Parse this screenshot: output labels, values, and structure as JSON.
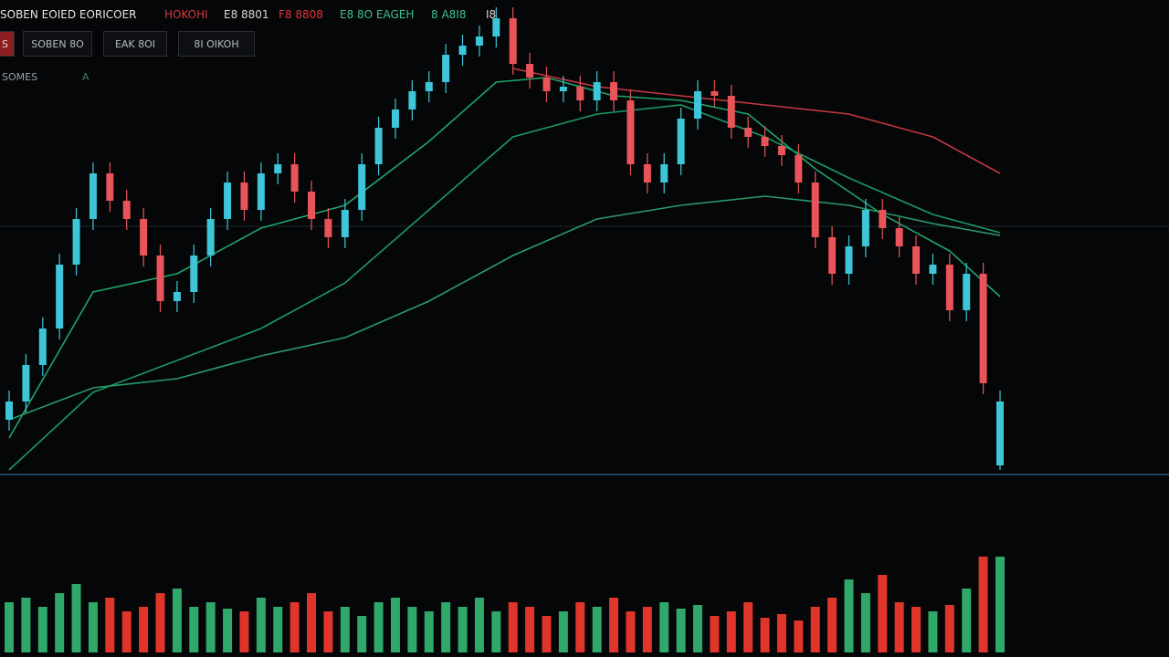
{
  "header": {
    "items": [
      {
        "text": "SOBEN EOIED EORICOER",
        "color": "#e6e6e6"
      },
      {
        "text": "HOKOHI",
        "color": "#e0353b"
      },
      {
        "text": "E8 8801",
        "color": "#d8d8d8"
      },
      {
        "text": "F8 8808",
        "color": "#e0353b"
      },
      {
        "text": "E8 8O EAGEH",
        "color": "#3fbf8f"
      },
      {
        "text": "8 A8I8",
        "color": "#3fbf8f"
      },
      {
        "text": "I8",
        "color": "#d8d8d8"
      }
    ],
    "tabs": [
      "S",
      "SOBEN 8O",
      "EAK 8OI",
      "8I OIKOH"
    ],
    "subtitle": "SOMES",
    "subtitle_mark": "A"
  },
  "chart_data": {
    "type": "candlestick",
    "xlim": [
      0,
      59
    ],
    "ylim": [
      0,
      520
    ],
    "volume_ylim": [
      0,
      110
    ],
    "up_color": "#3ec6d8",
    "down_color": "#e8545a",
    "volume_up_color": "#2fa86a",
    "volume_down_color": "#e0352b",
    "open": [
      60,
      80,
      120,
      160,
      230,
      280,
      330,
      300,
      280,
      240,
      190,
      200,
      240,
      280,
      320,
      290,
      330,
      340,
      310,
      280,
      260,
      290,
      340,
      380,
      400,
      420,
      430,
      460,
      470,
      480,
      500,
      450,
      435,
      420,
      425,
      410,
      430,
      410,
      340,
      320,
      340,
      390,
      420,
      415,
      380,
      370,
      360,
      350,
      320,
      260,
      220,
      250,
      290,
      270,
      250,
      220,
      230,
      180,
      220,
      10
    ],
    "high": [
      92,
      132,
      172,
      242,
      292,
      342,
      342,
      312,
      292,
      252,
      212,
      252,
      292,
      332,
      332,
      342,
      352,
      352,
      322,
      292,
      302,
      352,
      392,
      412,
      432,
      442,
      472,
      482,
      492,
      512,
      512,
      462,
      447,
      437,
      437,
      442,
      442,
      422,
      352,
      352,
      402,
      432,
      432,
      427,
      392,
      382,
      372,
      362,
      332,
      272,
      262,
      302,
      302,
      282,
      262,
      242,
      242,
      232,
      232,
      92
    ],
    "low": [
      48,
      68,
      108,
      148,
      218,
      268,
      288,
      268,
      228,
      178,
      178,
      188,
      228,
      268,
      278,
      278,
      318,
      298,
      268,
      248,
      248,
      278,
      328,
      368,
      388,
      408,
      418,
      448,
      458,
      468,
      438,
      423,
      408,
      408,
      398,
      398,
      398,
      328,
      308,
      308,
      328,
      378,
      403,
      368,
      358,
      348,
      338,
      308,
      248,
      208,
      208,
      238,
      258,
      238,
      208,
      208,
      168,
      168,
      88,
      5
    ],
    "close": [
      80,
      120,
      160,
      230,
      280,
      330,
      300,
      280,
      240,
      190,
      200,
      240,
      280,
      320,
      290,
      330,
      340,
      310,
      280,
      260,
      290,
      340,
      380,
      400,
      420,
      430,
      460,
      470,
      480,
      500,
      450,
      435,
      420,
      425,
      410,
      430,
      410,
      340,
      320,
      340,
      390,
      420,
      415,
      380,
      370,
      360,
      350,
      320,
      260,
      220,
      250,
      290,
      270,
      250,
      220,
      230,
      180,
      220,
      100,
      80
    ],
    "volume": [
      55,
      60,
      50,
      65,
      75,
      55,
      60,
      45,
      50,
      65,
      70,
      50,
      55,
      48,
      45,
      60,
      50,
      55,
      65,
      45,
      50,
      40,
      55,
      60,
      50,
      45,
      55,
      50,
      60,
      45,
      55,
      50,
      40,
      45,
      55,
      50,
      60,
      45,
      50,
      55,
      48,
      52,
      40,
      45,
      55,
      38,
      42,
      35,
      50,
      60,
      80,
      65,
      85,
      55,
      50,
      45,
      52,
      70,
      105,
      105
    ],
    "lines": [
      {
        "color": "#1fa56a",
        "x": [
          0,
          5,
          10,
          15,
          20,
          25,
          29,
          32,
          36,
          40,
          44,
          48,
          52,
          56,
          59
        ],
        "values": [
          40,
          200,
          220,
          270,
          295,
          365,
          430,
          435,
          415,
          410,
          395,
          335,
          285,
          245,
          195
        ]
      },
      {
        "color": "#1b9a60",
        "x": [
          0,
          5,
          10,
          15,
          20,
          25,
          30,
          35,
          40,
          45,
          50,
          55,
          59
        ],
        "values": [
          5,
          90,
          125,
          160,
          210,
          290,
          370,
          395,
          405,
          370,
          325,
          285,
          265
        ]
      },
      {
        "color": "#2a9a6a",
        "x": [
          0,
          5,
          10,
          15,
          20,
          25,
          30,
          35,
          40,
          45,
          50,
          55,
          59
        ],
        "values": [
          60,
          95,
          105,
          130,
          150,
          190,
          240,
          280,
          295,
          305,
          295,
          275,
          262
        ]
      },
      {
        "color": "#c0393f",
        "x": [
          30,
          35,
          40,
          45,
          50,
          55,
          59
        ],
        "values": [
          445,
          425,
          415,
          405,
          395,
          370,
          330
        ]
      }
    ]
  }
}
